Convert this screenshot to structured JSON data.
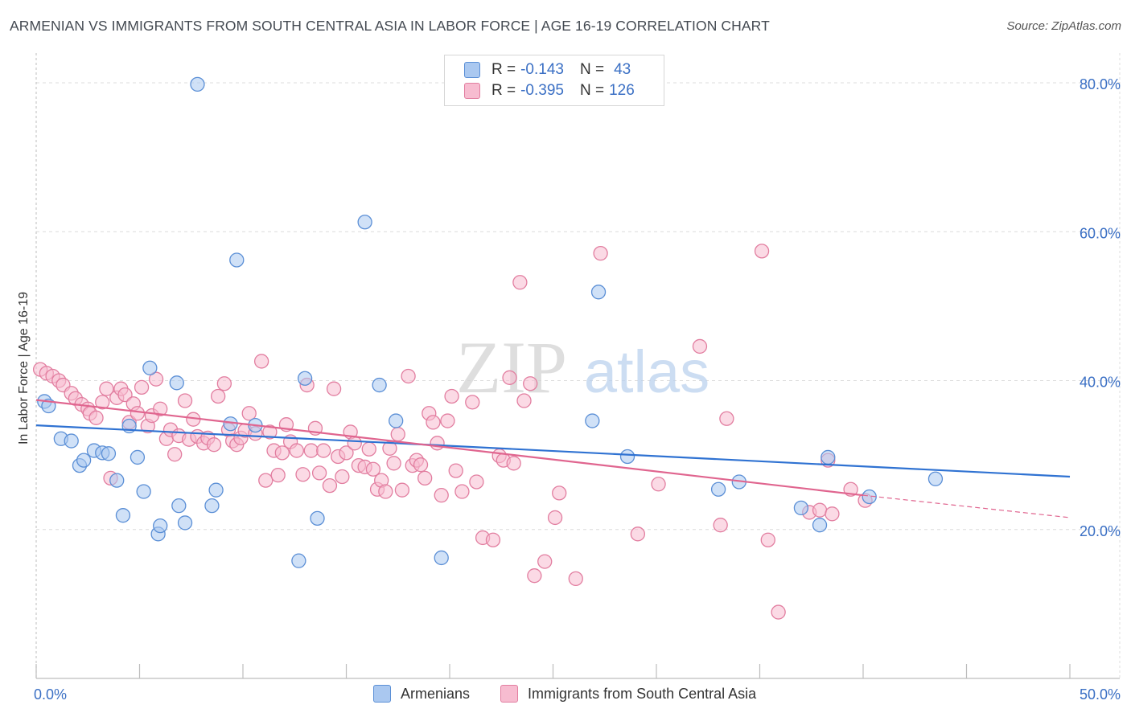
{
  "title": "ARMENIAN VS IMMIGRANTS FROM SOUTH CENTRAL ASIA IN LABOR FORCE | AGE 16-19 CORRELATION CHART",
  "source": "Source: ZipAtlas.com",
  "watermark": {
    "zip": "ZIP",
    "atlas": "atlas"
  },
  "legend_top": {
    "rows": [
      {
        "r_label": "R = ",
        "r_value": "-0.143",
        "n_label": "N = ",
        "n_value": "43"
      },
      {
        "r_label": "R = ",
        "r_value": "-0.395",
        "n_label": "N = ",
        "n_value": "126"
      }
    ]
  },
  "colors": {
    "armenians_fill": "#aac8f0",
    "armenians_stroke": "#5b8fd6",
    "armenians_line": "#2f72d2",
    "immigrants_fill": "#f7bcd0",
    "immigrants_stroke": "#e27ea0",
    "immigrants_line": "#e0658f",
    "tick_label": "#3a6fc4",
    "grid": "#dcdcdc"
  },
  "chart_data": {
    "type": "scatter",
    "title": "ARMENIAN VS IMMIGRANTS FROM SOUTH CENTRAL ASIA IN LABOR FORCE | AGE 16-19 CORRELATION CHART",
    "xlabel": "",
    "ylabel": "In Labor Force | Age 16-19",
    "xlim": [
      0,
      50
    ],
    "ylim": [
      0,
      84
    ],
    "x_tick_labels": [
      "0.0%",
      "50.0%"
    ],
    "y_ticks": [
      20,
      40,
      60,
      80
    ],
    "y_tick_labels": [
      "20.0%",
      "40.0%",
      "60.0%",
      "80.0%"
    ],
    "grid": true,
    "legend_position": "bottom",
    "series": [
      {
        "name": "Armenians",
        "r": -0.143,
        "n": 43,
        "trend": {
          "x": [
            0,
            50
          ],
          "y": [
            34.0,
            27.1
          ]
        },
        "points": [
          [
            0.4,
            37.2
          ],
          [
            0.6,
            36.6
          ],
          [
            1.2,
            32.2
          ],
          [
            1.7,
            31.9
          ],
          [
            2.1,
            28.6
          ],
          [
            2.3,
            29.3
          ],
          [
            2.8,
            30.6
          ],
          [
            3.2,
            30.3
          ],
          [
            3.5,
            30.2
          ],
          [
            3.9,
            26.6
          ],
          [
            4.2,
            21.9
          ],
          [
            4.5,
            33.9
          ],
          [
            4.9,
            29.7
          ],
          [
            5.2,
            25.1
          ],
          [
            5.5,
            41.7
          ],
          [
            5.9,
            19.4
          ],
          [
            6.0,
            20.5
          ],
          [
            6.8,
            39.7
          ],
          [
            6.9,
            23.2
          ],
          [
            7.2,
            20.9
          ],
          [
            7.8,
            79.8
          ],
          [
            8.5,
            23.2
          ],
          [
            8.7,
            25.3
          ],
          [
            9.4,
            34.2
          ],
          [
            9.7,
            56.2
          ],
          [
            10.6,
            34.0
          ],
          [
            12.7,
            15.8
          ],
          [
            13.0,
            40.3
          ],
          [
            13.6,
            21.5
          ],
          [
            15.9,
            61.3
          ],
          [
            16.6,
            39.4
          ],
          [
            17.4,
            34.6
          ],
          [
            19.6,
            16.2
          ],
          [
            26.9,
            34.6
          ],
          [
            27.2,
            51.9
          ],
          [
            28.6,
            29.8
          ],
          [
            33.0,
            25.4
          ],
          [
            34.0,
            26.4
          ],
          [
            37.0,
            22.9
          ],
          [
            37.9,
            20.6
          ],
          [
            38.3,
            29.7
          ],
          [
            40.3,
            24.4
          ],
          [
            43.5,
            26.8
          ]
        ]
      },
      {
        "name": "Immigrants from South Central Asia",
        "r": -0.395,
        "n": 126,
        "trend": {
          "x": [
            0,
            40
          ],
          "y": [
            37.4,
            24.6
          ]
        },
        "trend_extension": {
          "x": [
            40,
            50
          ],
          "y": [
            24.6,
            21.6
          ]
        },
        "points": [
          [
            0.2,
            41.5
          ],
          [
            0.5,
            41.0
          ],
          [
            0.8,
            40.6
          ],
          [
            1.1,
            40.0
          ],
          [
            1.3,
            39.4
          ],
          [
            1.7,
            38.3
          ],
          [
            1.9,
            37.6
          ],
          [
            2.2,
            36.8
          ],
          [
            2.5,
            36.2
          ],
          [
            2.6,
            35.6
          ],
          [
            2.9,
            35.0
          ],
          [
            3.2,
            37.1
          ],
          [
            3.4,
            38.9
          ],
          [
            3.6,
            26.9
          ],
          [
            3.9,
            37.7
          ],
          [
            4.1,
            38.9
          ],
          [
            4.3,
            38.1
          ],
          [
            4.5,
            34.4
          ],
          [
            4.7,
            36.9
          ],
          [
            4.9,
            35.6
          ],
          [
            5.1,
            39.1
          ],
          [
            5.4,
            33.9
          ],
          [
            5.6,
            35.3
          ],
          [
            5.8,
            40.2
          ],
          [
            6.0,
            36.2
          ],
          [
            6.3,
            32.2
          ],
          [
            6.5,
            33.4
          ],
          [
            6.7,
            30.1
          ],
          [
            6.9,
            32.6
          ],
          [
            7.2,
            37.3
          ],
          [
            7.4,
            32.1
          ],
          [
            7.6,
            34.8
          ],
          [
            7.8,
            32.5
          ],
          [
            8.1,
            31.6
          ],
          [
            8.3,
            32.3
          ],
          [
            8.6,
            31.4
          ],
          [
            8.8,
            37.9
          ],
          [
            9.1,
            39.6
          ],
          [
            9.3,
            33.4
          ],
          [
            9.5,
            31.9
          ],
          [
            9.7,
            31.4
          ],
          [
            9.9,
            32.3
          ],
          [
            10.1,
            33.3
          ],
          [
            10.3,
            35.6
          ],
          [
            10.6,
            32.9
          ],
          [
            10.9,
            42.6
          ],
          [
            11.1,
            26.6
          ],
          [
            11.3,
            33.1
          ],
          [
            11.5,
            30.6
          ],
          [
            11.7,
            27.3
          ],
          [
            11.9,
            30.3
          ],
          [
            12.1,
            34.1
          ],
          [
            12.3,
            31.8
          ],
          [
            12.6,
            30.6
          ],
          [
            12.9,
            27.4
          ],
          [
            13.1,
            39.4
          ],
          [
            13.3,
            30.6
          ],
          [
            13.5,
            33.6
          ],
          [
            13.7,
            27.6
          ],
          [
            13.9,
            30.6
          ],
          [
            14.2,
            25.9
          ],
          [
            14.4,
            38.9
          ],
          [
            14.6,
            29.8
          ],
          [
            14.8,
            27.1
          ],
          [
            15.0,
            30.3
          ],
          [
            15.2,
            33.1
          ],
          [
            15.4,
            31.6
          ],
          [
            15.6,
            28.6
          ],
          [
            15.9,
            28.4
          ],
          [
            16.1,
            30.8
          ],
          [
            16.3,
            28.1
          ],
          [
            16.5,
            25.4
          ],
          [
            16.7,
            26.6
          ],
          [
            16.9,
            25.1
          ],
          [
            17.1,
            30.9
          ],
          [
            17.3,
            28.9
          ],
          [
            17.5,
            32.8
          ],
          [
            17.7,
            25.3
          ],
          [
            18.0,
            40.6
          ],
          [
            18.2,
            28.6
          ],
          [
            18.4,
            29.3
          ],
          [
            18.6,
            28.7
          ],
          [
            18.8,
            26.9
          ],
          [
            19.0,
            35.6
          ],
          [
            19.2,
            34.4
          ],
          [
            19.4,
            31.6
          ],
          [
            19.6,
            24.6
          ],
          [
            19.9,
            34.6
          ],
          [
            20.1,
            37.9
          ],
          [
            20.3,
            27.9
          ],
          [
            20.6,
            25.1
          ],
          [
            21.1,
            37.1
          ],
          [
            21.3,
            26.4
          ],
          [
            21.6,
            18.9
          ],
          [
            22.1,
            18.6
          ],
          [
            22.4,
            29.9
          ],
          [
            22.6,
            29.3
          ],
          [
            22.9,
            40.4
          ],
          [
            23.1,
            28.9
          ],
          [
            23.4,
            53.2
          ],
          [
            23.6,
            37.3
          ],
          [
            23.9,
            39.6
          ],
          [
            24.1,
            13.8
          ],
          [
            24.6,
            15.7
          ],
          [
            25.1,
            21.6
          ],
          [
            25.3,
            24.9
          ],
          [
            26.1,
            13.4
          ],
          [
            27.3,
            57.1
          ],
          [
            29.1,
            19.4
          ],
          [
            30.1,
            26.1
          ],
          [
            32.1,
            44.6
          ],
          [
            33.1,
            20.6
          ],
          [
            33.4,
            34.9
          ],
          [
            35.1,
            57.4
          ],
          [
            35.4,
            18.6
          ],
          [
            35.9,
            8.9
          ],
          [
            37.4,
            22.3
          ],
          [
            37.9,
            22.6
          ],
          [
            38.5,
            22.1
          ],
          [
            38.3,
            29.3
          ],
          [
            39.4,
            25.4
          ],
          [
            40.1,
            23.9
          ]
        ]
      }
    ]
  },
  "bottom_legend": [
    {
      "label": "Armenians"
    },
    {
      "label": "Immigrants from South Central Asia"
    }
  ]
}
